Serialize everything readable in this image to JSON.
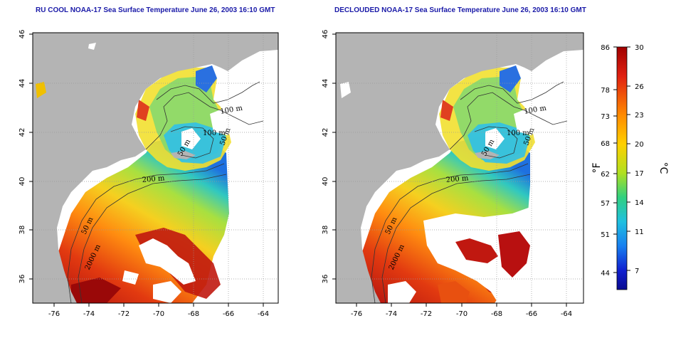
{
  "panels": [
    {
      "title": "RU COOL NOAA-17 Sea Surface Temperature June 26, 2003 16:10 GMT",
      "x_ticks": [
        "-76",
        "-74",
        "-72",
        "-70",
        "-68",
        "-66",
        "-64"
      ],
      "y_ticks": [
        "46",
        "44",
        "42",
        "40",
        "38",
        "36"
      ],
      "contour_labels": [
        "100 m",
        "100 m",
        "50 m",
        "50 m",
        "200 m",
        "50 m",
        "2000 m"
      ]
    },
    {
      "title": "DECLOUDED NOAA-17 Sea Surface Temperature June 26, 2003 16:10 GMT",
      "x_ticks": [
        "-76",
        "-74",
        "-72",
        "-70",
        "-68",
        "-66",
        "-64"
      ],
      "y_ticks": [
        "46",
        "44",
        "42",
        "40",
        "38",
        "36"
      ],
      "contour_labels": [
        "100 m",
        "100 m",
        "50 m",
        "50 m",
        "200 m",
        "50 m",
        "2000 m"
      ]
    }
  ],
  "colorbar": {
    "fahrenheit_ticks": [
      "86",
      "78",
      "73",
      "68",
      "62",
      "57",
      "51",
      "44"
    ],
    "celsius_ticks": [
      "30",
      "26",
      "23",
      "20",
      "17",
      "14",
      "11",
      "7"
    ],
    "fahrenheit_unit": "°F",
    "celsius_unit": "°C"
  },
  "colors": {
    "land": "#b4b4b4",
    "title": "#1a1aa8",
    "warm": "#cc2200",
    "cool": "#1e90ff"
  }
}
